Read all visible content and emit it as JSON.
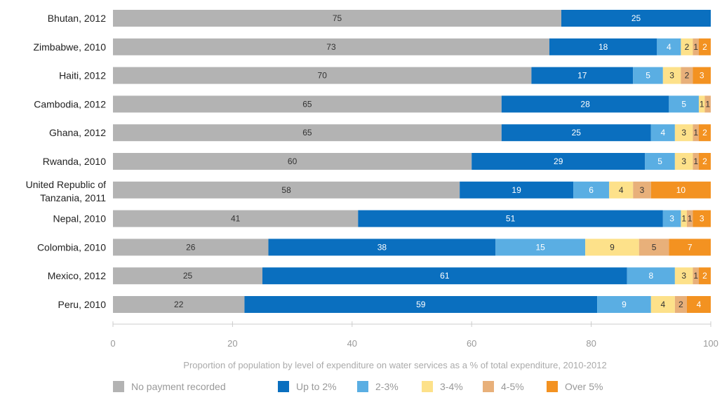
{
  "chart_data": {
    "type": "bar",
    "orientation": "horizontal",
    "stacked": true,
    "categories": [
      "Bhutan, 2012",
      "Zimbabwe, 2010",
      "Haiti, 2012",
      "Cambodia, 2012",
      "Ghana, 2012",
      "Rwanda, 2010",
      "United Republic of\nTanzania, 2011",
      "Nepal, 2010",
      "Colombia, 2010",
      "Mexico, 2012",
      "Peru, 2010"
    ],
    "series": [
      {
        "name": "No payment recorded",
        "color": "#b3b3b3",
        "label_color": "#333333",
        "values": [
          75,
          73,
          70,
          65,
          65,
          60,
          58,
          41,
          26,
          25,
          22
        ]
      },
      {
        "name": "Up to 2%",
        "color": "#0a6fbf",
        "label_color": "#ffffff",
        "values": [
          25,
          18,
          17,
          28,
          25,
          29,
          19,
          51,
          38,
          61,
          59
        ]
      },
      {
        "name": "2-3%",
        "color": "#5aaee3",
        "label_color": "#ffffff",
        "values": [
          0,
          4,
          5,
          5,
          4,
          5,
          6,
          3,
          15,
          8,
          9
        ]
      },
      {
        "name": "3-4%",
        "color": "#fde18a",
        "label_color": "#333333",
        "values": [
          0,
          2,
          3,
          1,
          3,
          3,
          4,
          1,
          9,
          3,
          4
        ]
      },
      {
        "name": "4-5%",
        "color": "#e8b07a",
        "label_color": "#333333",
        "values": [
          0,
          1,
          2,
          1,
          1,
          1,
          3,
          1,
          5,
          1,
          2
        ]
      },
      {
        "name": "Over 5%",
        "color": "#f39221",
        "label_color": "#ffffff",
        "values": [
          0,
          2,
          3,
          0,
          2,
          2,
          10,
          3,
          7,
          2,
          4
        ]
      }
    ],
    "xlim": [
      0,
      100
    ],
    "xticks": [
      0,
      20,
      40,
      60,
      80,
      100
    ],
    "xlabel": "Proportion of population by level of expenditure on water services as a % of total expenditure, 2010-2012",
    "ylabel": "",
    "title": "",
    "grid": false,
    "legend": "bottom"
  }
}
